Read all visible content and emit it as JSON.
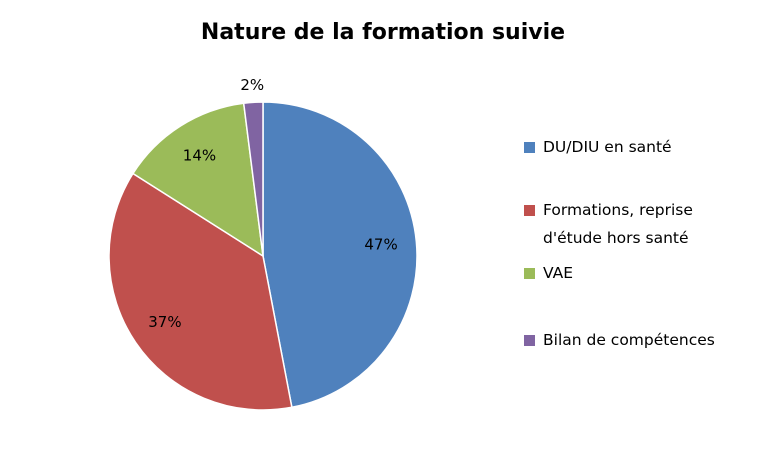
{
  "chart_data": {
    "type": "pie",
    "title": "Nature de la formation suivie",
    "categories": [
      "DU/DIU en santé",
      "Formations, reprise d'étude hors santé",
      "VAE",
      "Bilan de compétences"
    ],
    "values": [
      47,
      37,
      14,
      2
    ],
    "value_labels": [
      "47%",
      "37%",
      "14%",
      "2%"
    ],
    "colors": [
      "#4f81bd",
      "#c0504d",
      "#9bbb59",
      "#8064a2"
    ],
    "legend": "right"
  }
}
